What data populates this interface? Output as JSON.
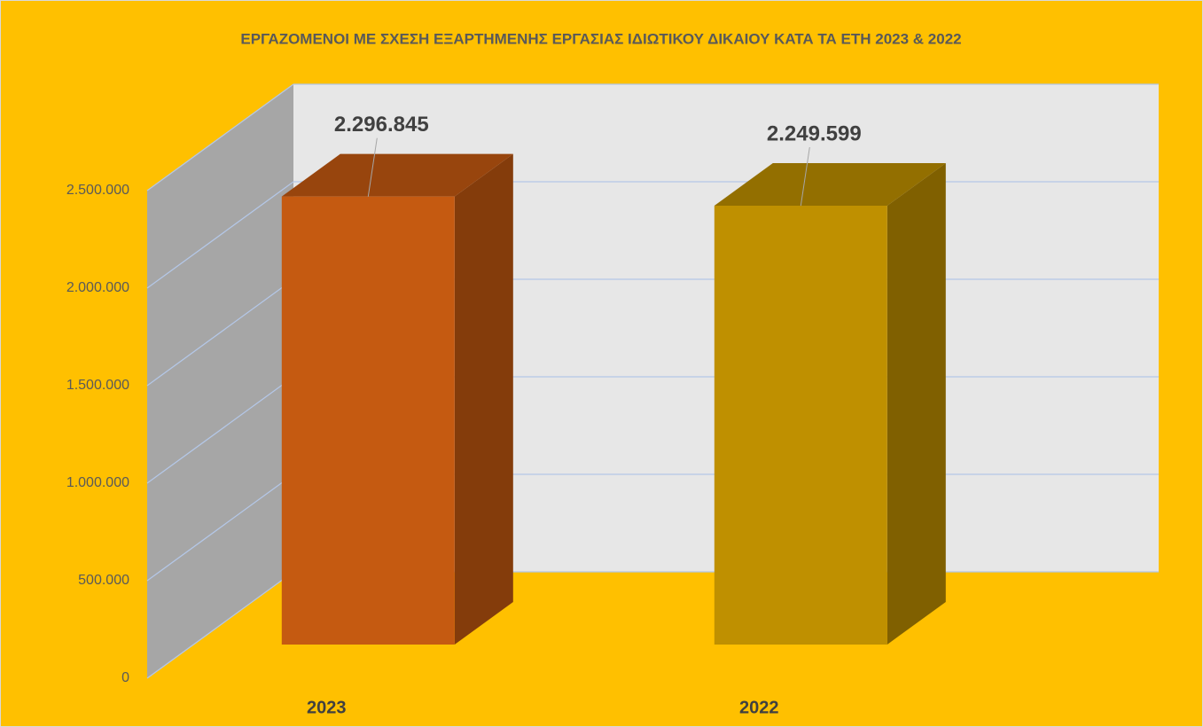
{
  "chart_data": {
    "type": "bar3d",
    "title": "ΕΡΓΑΖΟΜΕΝΟΙ ΜΕ ΣΧΕΣΗ ΕΞΑΡΤΗΜΕΝΗΣ ΕΡΓΑΣΙΑΣ ΙΔΙΩΤΙΚΟΥ ΔΙΚΑΙΟΥ ΚΑΤΑ ΤΑ ΕΤΗ 2023 & 2022",
    "categories": [
      "2023",
      "2022"
    ],
    "values": [
      2296845,
      2249599
    ],
    "value_labels": [
      "2.296.845",
      "2.249.599"
    ],
    "colors": [
      "#C55A11",
      "#BF9000"
    ],
    "ylim": [
      0,
      2500000
    ],
    "yticks": [
      0,
      {
        "value": 500000,
        "label": "500.000"
      },
      {
        "value": 1000000,
        "label": "1.000.000"
      },
      {
        "value": 1500000,
        "label": "1.500.000"
      },
      {
        "value": 2000000,
        "label": "2.000.000"
      },
      {
        "value": 2500000,
        "label": "2.500.000"
      }
    ],
    "grid": true
  }
}
